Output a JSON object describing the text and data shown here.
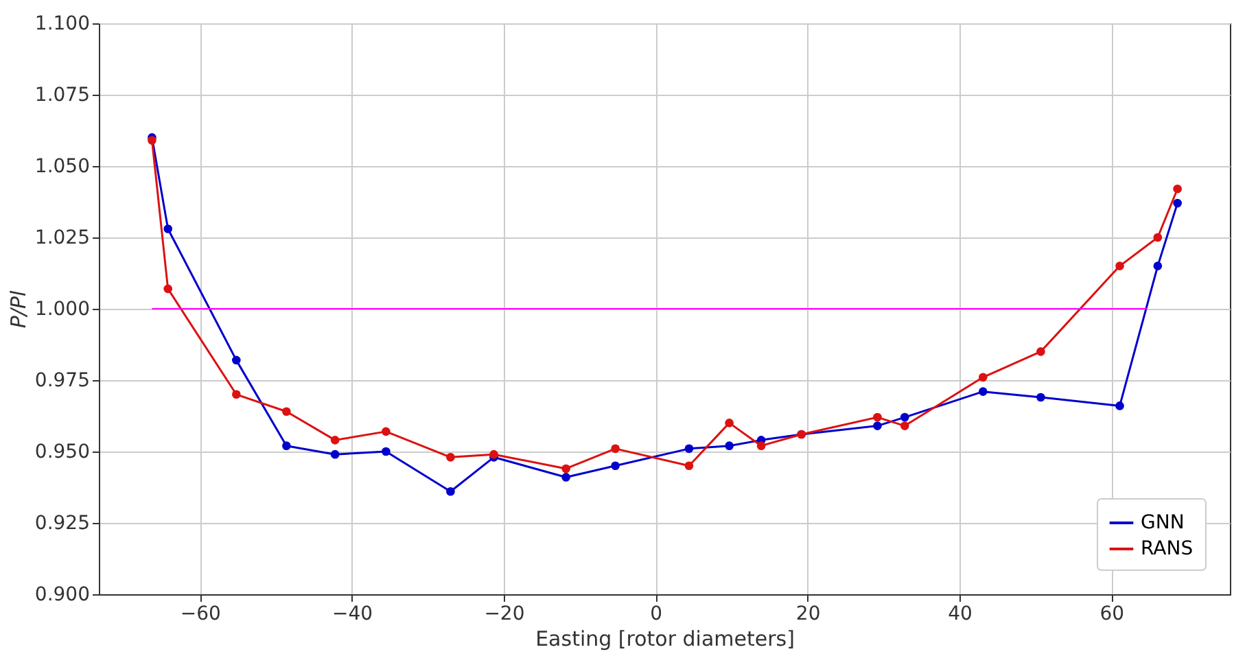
{
  "chart_data": {
    "type": "line",
    "xlabel": "Easting [rotor diameters]",
    "ylabel": "P/Pl",
    "xlim": [
      -73.3,
      75.6
    ],
    "xticks": [
      -60,
      -40,
      -20,
      0,
      20,
      40,
      60
    ],
    "ylim": [
      0.9,
      1.1
    ],
    "yticks": [
      {
        "value": 0.9,
        "label": "0.900"
      },
      {
        "value": 0.925,
        "label": "0.925"
      },
      {
        "value": 0.95,
        "label": "0.950"
      },
      {
        "value": 0.975,
        "label": "0.975"
      },
      {
        "value": 1.0,
        "label": "1.000"
      },
      {
        "value": 1.025,
        "label": "1.025"
      },
      {
        "value": 1.05,
        "label": "1.050"
      },
      {
        "value": 1.075,
        "label": "1.075"
      },
      {
        "value": 1.1,
        "label": "1.100"
      }
    ],
    "grid": true,
    "legend": "bottom right",
    "marker": "circle",
    "line_style": "solid",
    "series": [
      {
        "name": "GNN",
        "color": "#0000cc",
        "x": [
          -66.3,
          -64.2,
          -55.2,
          -48.6,
          -42.2,
          -35.5,
          -27.0,
          -21.3,
          -11.8,
          -5.3,
          4.4,
          9.7,
          13.9,
          19.2,
          29.2,
          32.8,
          43.1,
          50.7,
          61.1,
          66.1,
          68.7
        ],
        "values": [
          1.06,
          1.028,
          0.982,
          0.952,
          0.949,
          0.95,
          0.936,
          0.948,
          0.941,
          0.945,
          0.951,
          0.952,
          0.954,
          0.956,
          0.959,
          0.962,
          0.971,
          0.969,
          0.966,
          1.015,
          1.037
        ]
      },
      {
        "name": "RANS",
        "color": "#dd1111",
        "x": [
          -66.3,
          -64.2,
          -55.2,
          -48.6,
          -42.2,
          -35.5,
          -27.0,
          -21.3,
          -11.8,
          -5.3,
          4.4,
          9.7,
          13.9,
          19.2,
          29.2,
          32.8,
          43.1,
          50.7,
          61.1,
          66.1,
          68.7
        ],
        "values": [
          1.059,
          1.007,
          0.97,
          0.964,
          0.954,
          0.957,
          0.948,
          0.949,
          0.944,
          0.951,
          0.945,
          0.96,
          0.952,
          0.956,
          0.962,
          0.959,
          0.976,
          0.985,
          1.015,
          1.025,
          1.042
        ]
      },
      {
        "color": "#ff00ff",
        "marker": "none",
        "x": [
          -66.3,
          64.7
        ],
        "values": [
          1.0,
          1.0
        ]
      }
    ]
  }
}
